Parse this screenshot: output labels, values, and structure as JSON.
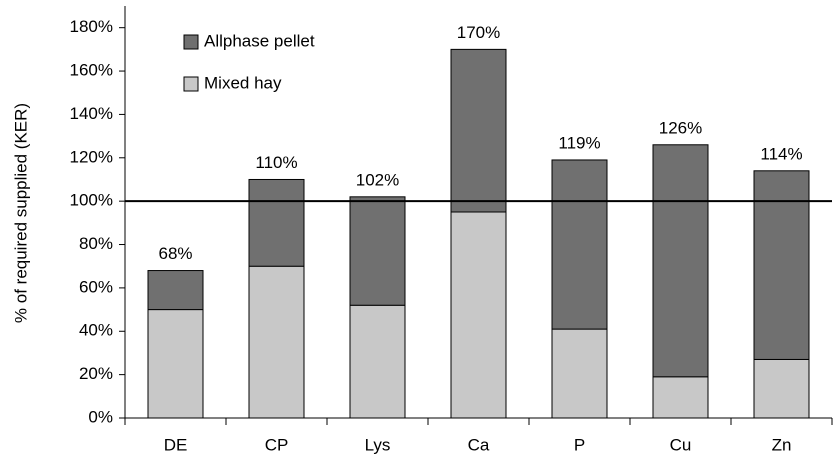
{
  "chart_data": {
    "type": "stacked_bar",
    "y_axis_label": "% of required supplied (KER)",
    "categories": [
      "DE",
      "CP",
      "Lys",
      "Ca",
      "P",
      "Cu",
      "Zn"
    ],
    "series": [
      {
        "name": "Mixed hay",
        "color": "#c8c8c8",
        "values": [
          50,
          70,
          52,
          95,
          41,
          19,
          27
        ]
      },
      {
        "name": "Allphase pellet",
        "color": "#707070",
        "values": [
          18,
          40,
          50,
          75,
          78,
          107,
          87
        ]
      }
    ],
    "totals": [
      68,
      110,
      102,
      170,
      119,
      126,
      114
    ],
    "total_labels": [
      "68%",
      "110%",
      "102%",
      "170%",
      "119%",
      "126%",
      "114%"
    ],
    "reference_line": 100,
    "ylim": [
      0,
      190
    ],
    "yticks": [
      {
        "value": 0,
        "label": "0%"
      },
      {
        "value": 20,
        "label": "20%"
      },
      {
        "value": 40,
        "label": "40%"
      },
      {
        "value": 60,
        "label": "60%"
      },
      {
        "value": 80,
        "label": "80%"
      },
      {
        "value": 100,
        "label": "100%"
      },
      {
        "value": 120,
        "label": "120%"
      },
      {
        "value": 140,
        "label": "140%"
      },
      {
        "value": 160,
        "label": "160%"
      },
      {
        "value": 180,
        "label": "180%"
      }
    ],
    "legend": "upper left"
  }
}
